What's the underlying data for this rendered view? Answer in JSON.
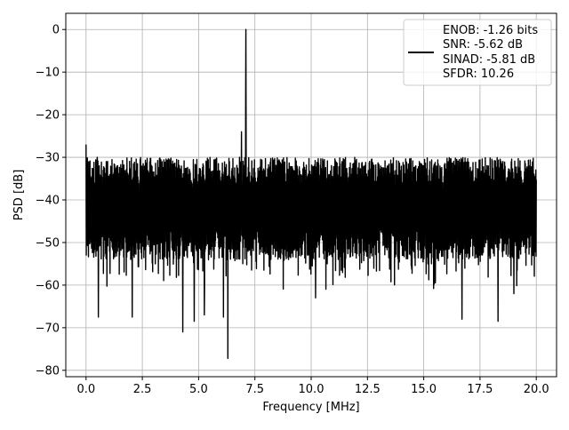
{
  "chart_data": {
    "type": "line",
    "xlabel": "Frequency [MHz]",
    "ylabel": "PSD [dB]",
    "xlim": [
      -0.9,
      20.9
    ],
    "ylim": [
      -81.5,
      3.8
    ],
    "xticks": [
      0.0,
      2.5,
      5.0,
      7.5,
      10.0,
      12.5,
      15.0,
      17.5,
      20.0
    ],
    "xtick_labels": [
      "0.0",
      "2.5",
      "5.0",
      "7.5",
      "10.0",
      "12.5",
      "15.0",
      "17.5",
      "20.0"
    ],
    "yticks": [
      0,
      -10,
      -20,
      -30,
      -40,
      -50,
      -60,
      -70,
      -80
    ],
    "ytick_labels": [
      "0",
      "−10",
      "−20",
      "−30",
      "−40",
      "−50",
      "−60",
      "−70",
      "−80"
    ],
    "grid": true,
    "legend_position": "upper right",
    "legend": [
      "ENOB: -1.26 bits",
      "SNR: -5.62 dB",
      "SINAD: -5.81 dB",
      "SFDR: 10.26"
    ],
    "series": [
      {
        "color": "#000000",
        "noise": {
          "x_start": 0.0,
          "x_end": 20.0,
          "mean_dB": -40,
          "upper_env_dB": -30,
          "lower_typ_dB": -53
        },
        "peaks": [
          {
            "x": 7.1,
            "y": 0.0
          }
        ],
        "dips": [
          {
            "x": 0.55,
            "y": -67.5
          },
          {
            "x": 2.05,
            "y": -67.5
          },
          {
            "x": 4.3,
            "y": -71.0
          },
          {
            "x": 4.8,
            "y": -68.5
          },
          {
            "x": 5.25,
            "y": -67.0
          },
          {
            "x": 6.3,
            "y": -77.2
          },
          {
            "x": 6.1,
            "y": -67.5
          },
          {
            "x": 10.2,
            "y": -63.0
          },
          {
            "x": 16.7,
            "y": -68.0
          },
          {
            "x": 18.3,
            "y": -68.5
          },
          {
            "x": 19.0,
            "y": -62.0
          }
        ],
        "edge_spikes": [
          {
            "x": 0.0,
            "y": -27.0
          },
          {
            "x": 0.5,
            "y": -30.0
          },
          {
            "x": 6.9,
            "y": -24.0
          }
        ]
      }
    ]
  }
}
